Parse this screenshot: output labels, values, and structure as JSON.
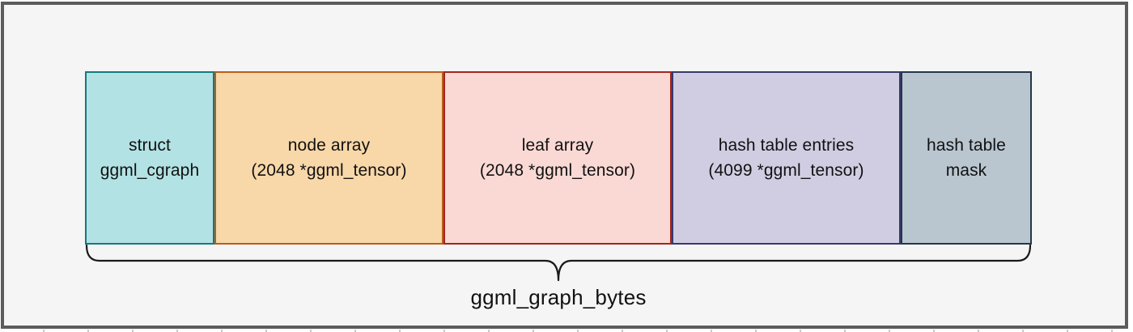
{
  "canvas": {
    "background": "#f4f5f4",
    "frame_color": "#5c5c5c",
    "outer_background": "#ffffff",
    "text_color": "#111111"
  },
  "diagram": {
    "title_hint": "memory layout of ggml graph buffer",
    "blocks": [
      {
        "id": "struct-ggml-cgraph",
        "lines": [
          "struct",
          "ggml_cgraph"
        ],
        "fill": "#b2e2e4",
        "border": "#117b80",
        "width_fr": 160
      },
      {
        "id": "node-array",
        "lines": [
          "node array",
          "(2048 *ggml_tensor)"
        ],
        "fill": "#f8d7a9",
        "border": "#b95d1d",
        "width_fr": 283
      },
      {
        "id": "leaf-array",
        "lines": [
          "leaf array",
          "(2048 *ggml_tensor)"
        ],
        "fill": "#fad9d5",
        "border": "#a4251d",
        "width_fr": 282
      },
      {
        "id": "hash-table-entries",
        "lines": [
          "hash table entries",
          "(4099 *ggml_tensor)"
        ],
        "fill": "#d0cde3",
        "border": "#39386c",
        "width_fr": 283
      },
      {
        "id": "hash-table-mask",
        "lines": [
          "hash table",
          "mask"
        ],
        "fill": "#b9c6d0",
        "border": "#22384a",
        "width_fr": 162
      }
    ],
    "brace": {
      "label": "ggml_graph_bytes",
      "color": "#1a1a1a"
    }
  }
}
